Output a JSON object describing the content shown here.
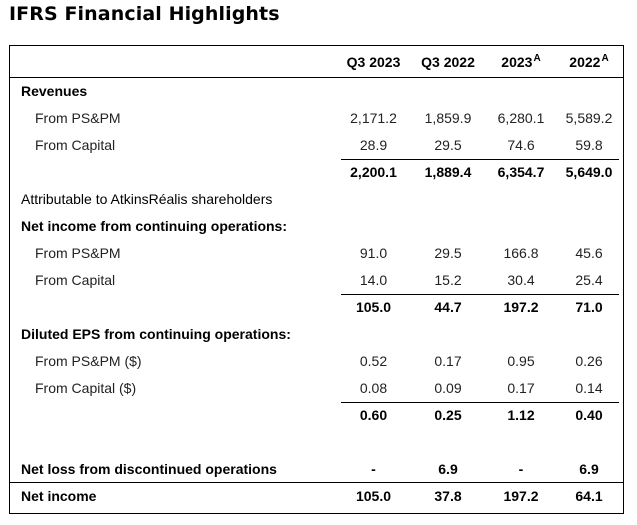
{
  "title": "IFRS Financial Highlights",
  "columns": [
    "Q3 2023",
    "Q3 2022",
    "2023",
    "2022"
  ],
  "column_superscripts": [
    "",
    "",
    "A",
    "A"
  ],
  "rows": [
    {
      "label": "Revenues",
      "style": "bold",
      "values": [
        "",
        "",
        "",
        ""
      ]
    },
    {
      "label": "From PS&PM",
      "style": "indent",
      "values": [
        "2,171.2",
        "1,859.9",
        "6,280.1",
        "5,589.2"
      ]
    },
    {
      "label": "From Capital",
      "style": "indent",
      "values": [
        "28.9",
        "29.5",
        "74.6",
        "59.8"
      ]
    },
    {
      "label": "",
      "style": "total",
      "values": [
        "2,200.1",
        "1,889.4",
        "6,354.7",
        "5,649.0"
      ]
    },
    {
      "label": "Attributable to AtkinsRéalis shareholders",
      "style": "plain",
      "values": [
        "",
        "",
        "",
        ""
      ]
    },
    {
      "label": "Net income from continuing operations:",
      "style": "bold",
      "values": [
        "",
        "",
        "",
        ""
      ]
    },
    {
      "label": "From PS&PM",
      "style": "indent",
      "values": [
        "91.0",
        "29.5",
        "166.8",
        "45.6"
      ]
    },
    {
      "label": "From Capital",
      "style": "indent",
      "values": [
        "14.0",
        "15.2",
        "30.4",
        "25.4"
      ]
    },
    {
      "label": "",
      "style": "total",
      "values": [
        "105.0",
        "44.7",
        "197.2",
        "71.0"
      ]
    },
    {
      "label": "Diluted EPS from continuing operations:",
      "style": "bold",
      "values": [
        "",
        "",
        "",
        ""
      ]
    },
    {
      "label": "From PS&PM ($)",
      "style": "indent",
      "values": [
        "0.52",
        "0.17",
        "0.95",
        "0.26"
      ]
    },
    {
      "label": "From Capital ($)",
      "style": "indent",
      "values": [
        "0.08",
        "0.09",
        "0.17",
        "0.14"
      ]
    },
    {
      "label": "",
      "style": "total",
      "values": [
        "0.60",
        "0.25",
        "1.12",
        "0.40"
      ]
    },
    {
      "label": "Net loss from discontinued operations",
      "style": "bold",
      "values": [
        "-",
        "6.9",
        "-",
        "6.9"
      ]
    },
    {
      "label": "Net income",
      "style": "bold",
      "values": [
        "105.0",
        "37.8",
        "197.2",
        "64.1"
      ]
    }
  ]
}
